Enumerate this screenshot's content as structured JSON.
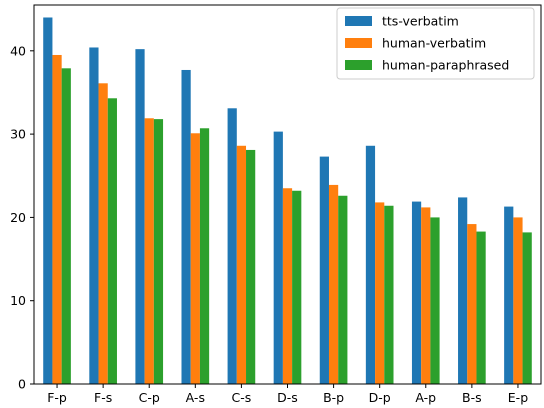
{
  "chart_data": {
    "type": "bar",
    "title": "",
    "xlabel": "",
    "ylabel": "",
    "categories": [
      "F-p",
      "F-s",
      "C-p",
      "A-s",
      "C-s",
      "D-s",
      "B-p",
      "D-p",
      "A-p",
      "B-s",
      "E-p"
    ],
    "series": [
      {
        "name": "tts-verbatim",
        "color": "#1f77b4",
        "values": [
          44.0,
          40.4,
          40.2,
          37.7,
          33.1,
          30.3,
          27.3,
          28.6,
          21.9,
          22.4,
          21.3
        ]
      },
      {
        "name": "human-verbatim",
        "color": "#ff7f0e",
        "values": [
          39.5,
          36.1,
          31.9,
          30.1,
          28.6,
          23.5,
          23.9,
          21.8,
          21.2,
          19.2,
          20.0
        ]
      },
      {
        "name": "human-paraphrased",
        "color": "#2ca02c",
        "values": [
          37.9,
          34.3,
          31.8,
          30.7,
          28.1,
          23.2,
          22.6,
          21.4,
          20.0,
          18.3,
          18.2
        ]
      }
    ],
    "ylim": [
      0,
      45.5
    ],
    "yticks": [
      0,
      10,
      20,
      30,
      40
    ],
    "legend_position": "top-right",
    "grid": false
  }
}
